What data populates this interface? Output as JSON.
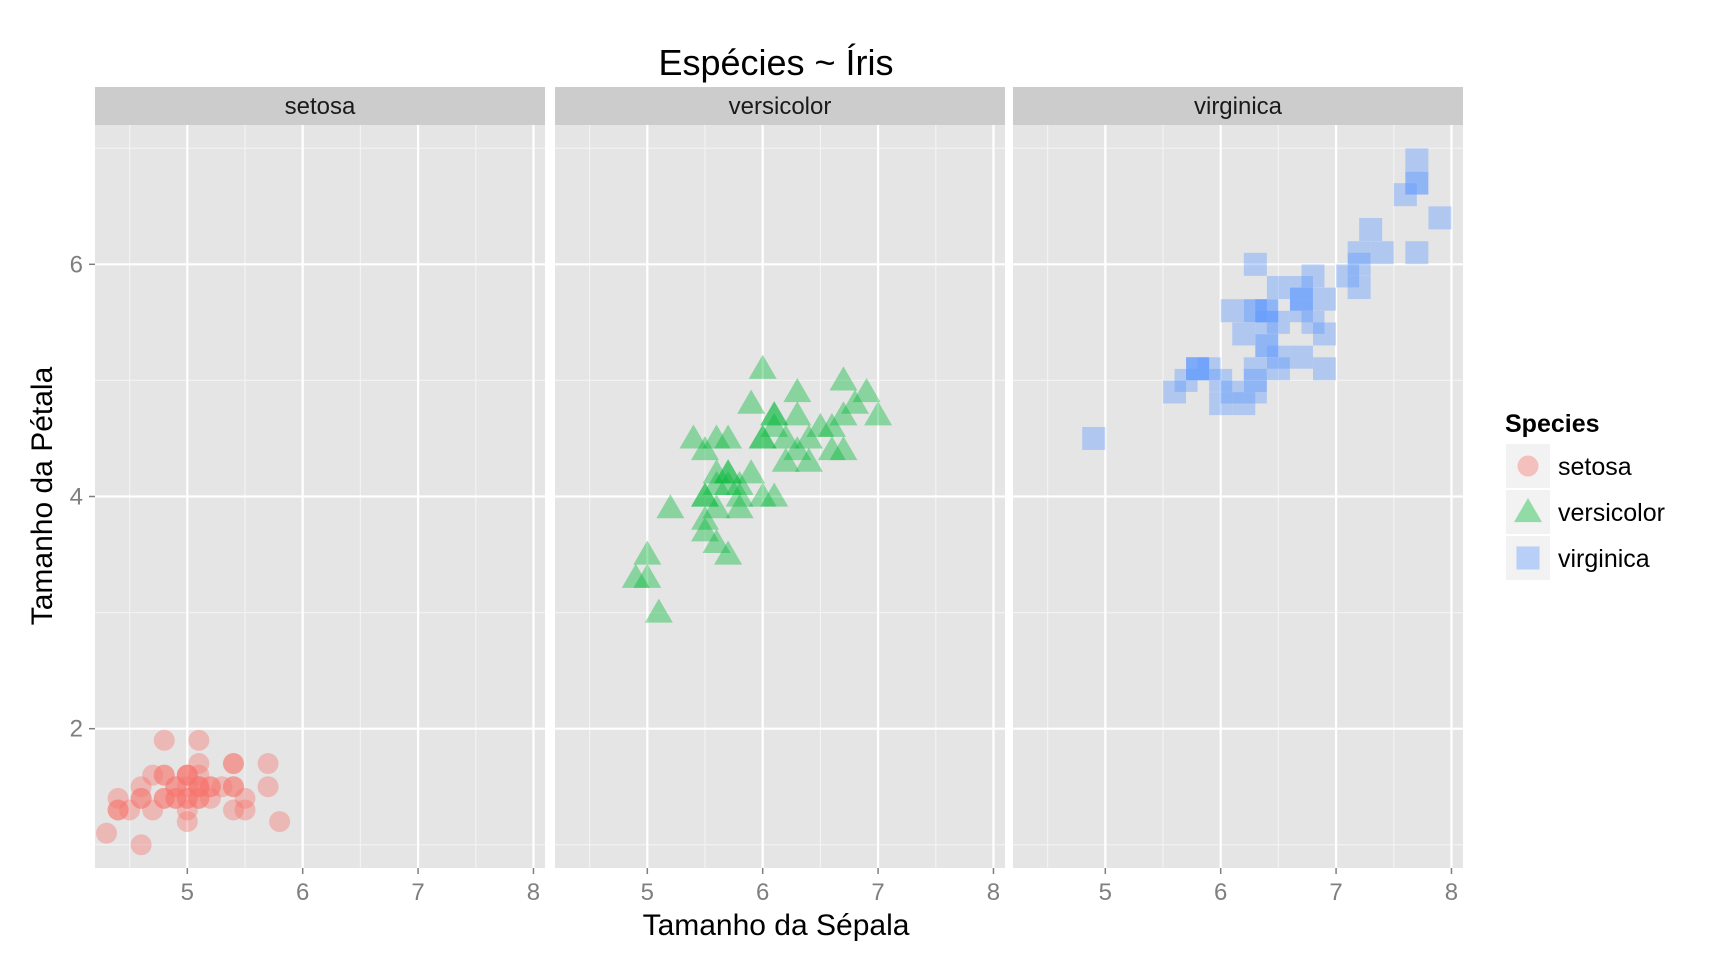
{
  "chart_data": {
    "type": "scatter",
    "title": "Espécies ~ Íris",
    "xlabel": "Tamanho da Sépala",
    "ylabel": "Tamanho da Pétala",
    "facets": [
      "setosa",
      "versicolor",
      "virginica"
    ],
    "xlim": [
      4.2,
      8.1
    ],
    "ylim": [
      0.8,
      7.2
    ],
    "x_ticks": [
      "5",
      "6",
      "7",
      "8"
    ],
    "y_ticks": [
      "2",
      "4",
      "6"
    ],
    "grid": true,
    "legend": {
      "title": "Species",
      "position": "right",
      "entries": [
        {
          "label": "setosa",
          "shape": "circle",
          "color": "#F8766D"
        },
        {
          "label": "versicolor",
          "shape": "triangle",
          "color": "#00BA38"
        },
        {
          "label": "virginica",
          "shape": "square",
          "color": "#619CFF"
        }
      ]
    },
    "series": [
      {
        "name": "setosa",
        "color": "#F8766D",
        "shape": "circle",
        "points": [
          [
            5.1,
            1.4
          ],
          [
            4.9,
            1.4
          ],
          [
            4.7,
            1.3
          ],
          [
            4.6,
            1.5
          ],
          [
            5.0,
            1.4
          ],
          [
            5.4,
            1.7
          ],
          [
            4.6,
            1.4
          ],
          [
            5.0,
            1.5
          ],
          [
            4.4,
            1.4
          ],
          [
            4.9,
            1.5
          ],
          [
            5.4,
            1.5
          ],
          [
            4.8,
            1.6
          ],
          [
            4.8,
            1.4
          ],
          [
            4.3,
            1.1
          ],
          [
            5.8,
            1.2
          ],
          [
            5.7,
            1.5
          ],
          [
            5.4,
            1.3
          ],
          [
            5.1,
            1.4
          ],
          [
            5.7,
            1.7
          ],
          [
            5.1,
            1.5
          ],
          [
            5.4,
            1.7
          ],
          [
            5.1,
            1.5
          ],
          [
            4.6,
            1.0
          ],
          [
            5.1,
            1.7
          ],
          [
            4.8,
            1.9
          ],
          [
            5.0,
            1.6
          ],
          [
            5.0,
            1.6
          ],
          [
            5.2,
            1.5
          ],
          [
            5.2,
            1.4
          ],
          [
            4.7,
            1.6
          ],
          [
            4.8,
            1.6
          ],
          [
            5.4,
            1.5
          ],
          [
            5.2,
            1.5
          ],
          [
            5.5,
            1.4
          ],
          [
            4.9,
            1.5
          ],
          [
            5.0,
            1.2
          ],
          [
            5.5,
            1.3
          ],
          [
            4.9,
            1.4
          ],
          [
            4.4,
            1.3
          ],
          [
            5.1,
            1.5
          ],
          [
            5.0,
            1.3
          ],
          [
            4.5,
            1.3
          ],
          [
            4.4,
            1.3
          ],
          [
            5.0,
            1.6
          ],
          [
            5.1,
            1.9
          ],
          [
            4.8,
            1.4
          ],
          [
            5.1,
            1.6
          ],
          [
            4.6,
            1.4
          ],
          [
            5.3,
            1.5
          ],
          [
            5.0,
            1.4
          ]
        ]
      },
      {
        "name": "versicolor",
        "color": "#00BA38",
        "shape": "triangle",
        "points": [
          [
            7.0,
            4.7
          ],
          [
            6.4,
            4.5
          ],
          [
            6.9,
            4.9
          ],
          [
            5.5,
            4.0
          ],
          [
            6.5,
            4.6
          ],
          [
            5.7,
            4.5
          ],
          [
            6.3,
            4.7
          ],
          [
            4.9,
            3.3
          ],
          [
            6.6,
            4.6
          ],
          [
            5.2,
            3.9
          ],
          [
            5.0,
            3.5
          ],
          [
            5.9,
            4.2
          ],
          [
            6.0,
            4.0
          ],
          [
            6.1,
            4.7
          ],
          [
            5.6,
            3.6
          ],
          [
            6.7,
            4.4
          ],
          [
            5.6,
            4.5
          ],
          [
            5.8,
            4.1
          ],
          [
            6.2,
            4.5
          ],
          [
            5.6,
            3.9
          ],
          [
            5.9,
            4.8
          ],
          [
            6.1,
            4.0
          ],
          [
            6.3,
            4.9
          ],
          [
            6.1,
            4.7
          ],
          [
            6.4,
            4.3
          ],
          [
            6.6,
            4.4
          ],
          [
            6.8,
            4.8
          ],
          [
            6.7,
            5.0
          ],
          [
            6.0,
            4.5
          ],
          [
            5.7,
            3.5
          ],
          [
            5.5,
            3.8
          ],
          [
            5.5,
            3.7
          ],
          [
            5.8,
            3.9
          ],
          [
            6.0,
            5.1
          ],
          [
            5.4,
            4.5
          ],
          [
            6.0,
            4.5
          ],
          [
            6.7,
            4.7
          ],
          [
            6.3,
            4.4
          ],
          [
            5.6,
            4.1
          ],
          [
            5.5,
            4.0
          ],
          [
            5.5,
            4.4
          ],
          [
            6.1,
            4.6
          ],
          [
            5.8,
            4.0
          ],
          [
            5.0,
            3.3
          ],
          [
            5.6,
            4.2
          ],
          [
            5.7,
            4.2
          ],
          [
            5.7,
            4.2
          ],
          [
            6.2,
            4.3
          ],
          [
            5.1,
            3.0
          ],
          [
            5.7,
            4.1
          ]
        ]
      },
      {
        "name": "virginica",
        "color": "#619CFF",
        "shape": "square",
        "points": [
          [
            6.3,
            6.0
          ],
          [
            5.8,
            5.1
          ],
          [
            7.1,
            5.9
          ],
          [
            6.3,
            5.6
          ],
          [
            6.5,
            5.8
          ],
          [
            7.6,
            6.6
          ],
          [
            4.9,
            4.5
          ],
          [
            7.3,
            6.3
          ],
          [
            6.7,
            5.8
          ],
          [
            7.2,
            6.1
          ],
          [
            6.5,
            5.1
          ],
          [
            6.4,
            5.3
          ],
          [
            6.8,
            5.5
          ],
          [
            5.7,
            5.0
          ],
          [
            5.8,
            5.1
          ],
          [
            6.4,
            5.3
          ],
          [
            6.5,
            5.5
          ],
          [
            7.7,
            6.7
          ],
          [
            7.7,
            6.9
          ],
          [
            6.0,
            5.0
          ],
          [
            6.9,
            5.7
          ],
          [
            5.6,
            4.9
          ],
          [
            7.7,
            6.7
          ],
          [
            6.3,
            4.9
          ],
          [
            6.7,
            5.7
          ],
          [
            7.2,
            6.0
          ],
          [
            6.2,
            4.8
          ],
          [
            6.1,
            4.9
          ],
          [
            6.4,
            5.6
          ],
          [
            7.2,
            5.8
          ],
          [
            7.4,
            6.1
          ],
          [
            7.9,
            6.4
          ],
          [
            6.4,
            5.6
          ],
          [
            6.3,
            5.1
          ],
          [
            6.1,
            5.6
          ],
          [
            7.7,
            6.1
          ],
          [
            6.3,
            5.6
          ],
          [
            6.4,
            5.5
          ],
          [
            6.0,
            4.8
          ],
          [
            6.9,
            5.4
          ],
          [
            6.7,
            5.6
          ],
          [
            6.9,
            5.1
          ],
          [
            5.8,
            5.1
          ],
          [
            6.8,
            5.9
          ],
          [
            6.7,
            5.7
          ],
          [
            6.7,
            5.2
          ],
          [
            6.3,
            5.0
          ],
          [
            6.5,
            5.2
          ],
          [
            6.2,
            5.4
          ],
          [
            5.9,
            5.1
          ]
        ]
      }
    ]
  }
}
